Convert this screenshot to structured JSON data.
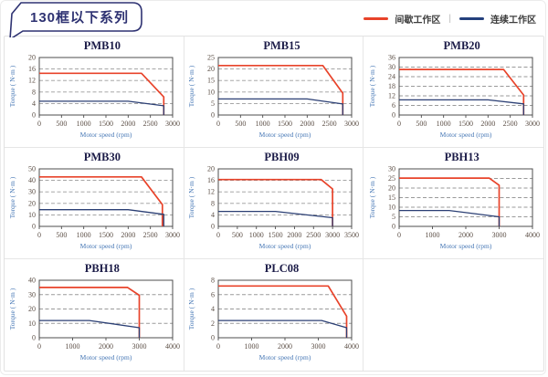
{
  "header": {
    "series_title": "130框以下系列",
    "legend_separator": "|",
    "legend": [
      {
        "name": "intermittent-zone",
        "label": "间歇工作区",
        "color": "#e8432a"
      },
      {
        "name": "continuous-zone",
        "label": "连续工作区",
        "color": "#24407c"
      }
    ]
  },
  "colors": {
    "tag_border": "#2e3272",
    "intermittent_line": "#e8432a",
    "continuous_line": "#2b3f74",
    "grid_border": "#e2e2e2",
    "plot_frame": "#4d4d4d",
    "tick_text": "#5c4f46",
    "axis_text": "#4677b5"
  },
  "chart_data": [
    {
      "type": "line",
      "title": "PMB10",
      "xlabel": "Motor speed (rpm)",
      "ylabel": "Torque ( N·m )",
      "xlim": [
        0,
        3000
      ],
      "ylim": [
        0,
        20
      ],
      "xticks": [
        0,
        500,
        1000,
        1500,
        2000,
        2500,
        3000
      ],
      "yticks": [
        0,
        4,
        8,
        12,
        16,
        20
      ],
      "series": [
        {
          "name": "间歇工作区",
          "color": "#e8432a",
          "points": [
            [
              0,
              14.5
            ],
            [
              2300,
              14.5
            ],
            [
              2800,
              6.3
            ],
            [
              2800,
              0
            ]
          ]
        },
        {
          "name": "连续工作区",
          "color": "#2b3f74",
          "points": [
            [
              0,
              4.8
            ],
            [
              2000,
              4.8
            ],
            [
              2800,
              3.2
            ],
            [
              2800,
              0
            ]
          ]
        }
      ]
    },
    {
      "type": "line",
      "title": "PMB15",
      "xlabel": "Motor speed (rpm)",
      "ylabel": "Torque ( N·m )",
      "xlim": [
        0,
        3000
      ],
      "ylim": [
        0,
        25
      ],
      "xticks": [
        0,
        500,
        1000,
        1500,
        2000,
        2500,
        3000
      ],
      "yticks": [
        0,
        5,
        10,
        15,
        20,
        25
      ],
      "series": [
        {
          "name": "间歇工作区",
          "color": "#e8432a",
          "points": [
            [
              0,
              21.5
            ],
            [
              2350,
              21.5
            ],
            [
              2800,
              9.5
            ],
            [
              2800,
              0
            ]
          ]
        },
        {
          "name": "连续工作区",
          "color": "#2b3f74",
          "points": [
            [
              0,
              7
            ],
            [
              2000,
              7
            ],
            [
              2800,
              4.8
            ],
            [
              2800,
              0
            ]
          ]
        }
      ]
    },
    {
      "type": "line",
      "title": "PMB20",
      "xlabel": "Motor speed (rpm)",
      "ylabel": "Torque ( N·m )",
      "xlim": [
        0,
        3000
      ],
      "ylim": [
        0,
        36
      ],
      "xticks": [
        0,
        500,
        1000,
        1500,
        2000,
        2500,
        3000
      ],
      "yticks": [
        0,
        6,
        12,
        18,
        24,
        30,
        36
      ],
      "series": [
        {
          "name": "间歇工作区",
          "color": "#e8432a",
          "points": [
            [
              0,
              28.5
            ],
            [
              2350,
              28.5
            ],
            [
              2800,
              12.5
            ],
            [
              2800,
              0
            ]
          ]
        },
        {
          "name": "连续工作区",
          "color": "#2b3f74",
          "points": [
            [
              0,
              9.5
            ],
            [
              2000,
              9.5
            ],
            [
              2800,
              7
            ],
            [
              2800,
              0
            ]
          ]
        }
      ]
    },
    {
      "type": "line",
      "title": "PMB30",
      "xlabel": "Motor speed (rpm)",
      "ylabel": "Torque ( N·m )",
      "xlim": [
        0,
        3000
      ],
      "ylim": [
        0,
        50
      ],
      "xticks": [
        0,
        500,
        1000,
        1500,
        2000,
        2500,
        3000
      ],
      "yticks": [
        0,
        10,
        20,
        30,
        40,
        50
      ],
      "series": [
        {
          "name": "间歇工作区",
          "color": "#e8432a",
          "points": [
            [
              0,
              43
            ],
            [
              2300,
              43
            ],
            [
              2770,
              19
            ],
            [
              2770,
              0
            ]
          ]
        },
        {
          "name": "连续工作区",
          "color": "#2b3f74",
          "points": [
            [
              0,
              14.5
            ],
            [
              2000,
              14.5
            ],
            [
              2800,
              10.5
            ],
            [
              2800,
              0
            ]
          ]
        }
      ]
    },
    {
      "type": "line",
      "title": "PBH09",
      "xlabel": "Motor speed (rpm)",
      "ylabel": "Torque ( N·m )",
      "xlim": [
        0,
        3500
      ],
      "ylim": [
        0,
        20
      ],
      "xticks": [
        0,
        500,
        1000,
        1500,
        2000,
        2500,
        3000,
        3500
      ],
      "yticks": [
        0,
        4,
        8,
        12,
        16,
        20
      ],
      "series": [
        {
          "name": "间歇工作区",
          "color": "#e8432a",
          "points": [
            [
              0,
              16.3
            ],
            [
              2700,
              16.3
            ],
            [
              3000,
              13
            ],
            [
              3000,
              0
            ]
          ]
        },
        {
          "name": "连续工作区",
          "color": "#2b3f74",
          "points": [
            [
              0,
              5.2
            ],
            [
              1500,
              5.2
            ],
            [
              3000,
              3
            ],
            [
              3000,
              0
            ]
          ]
        }
      ]
    },
    {
      "type": "line",
      "title": "PBH13",
      "xlabel": "Motor speed (rpm)",
      "ylabel": "Torque ( N·m )",
      "xlim": [
        0,
        4000
      ],
      "ylim": [
        0,
        30
      ],
      "xticks": [
        0,
        1000,
        2000,
        3000,
        4000
      ],
      "yticks": [
        0,
        5,
        10,
        15,
        20,
        25,
        30
      ],
      "series": [
        {
          "name": "间歇工作区",
          "color": "#e8432a",
          "points": [
            [
              0,
              25.2
            ],
            [
              2700,
              25.2
            ],
            [
              3000,
              21.5
            ],
            [
              3000,
              0
            ]
          ]
        },
        {
          "name": "连续工作区",
          "color": "#2b3f74",
          "points": [
            [
              0,
              8.3
            ],
            [
              1500,
              8.3
            ],
            [
              3000,
              5
            ],
            [
              3000,
              0
            ]
          ]
        }
      ]
    },
    {
      "type": "line",
      "title": "PBH18",
      "xlabel": "Motor speed (rpm)",
      "ylabel": "Torque ( N·m )",
      "xlim": [
        0,
        4000
      ],
      "ylim": [
        0,
        40
      ],
      "xticks": [
        0,
        1000,
        2000,
        3000,
        4000
      ],
      "yticks": [
        0,
        10,
        20,
        30,
        40
      ],
      "series": [
        {
          "name": "间歇工作区",
          "color": "#e8432a",
          "points": [
            [
              0,
              35
            ],
            [
              2650,
              35
            ],
            [
              3000,
              29.5
            ],
            [
              3000,
              0
            ]
          ]
        },
        {
          "name": "连续工作区",
          "color": "#2b3f74",
          "points": [
            [
              0,
              12
            ],
            [
              1500,
              12
            ],
            [
              3000,
              7
            ],
            [
              3000,
              0
            ]
          ]
        }
      ]
    },
    {
      "type": "line",
      "title": "PLC08",
      "xlabel": "Motor speed (rpm)",
      "ylabel": "Torque ( N·m )",
      "xlim": [
        0,
        4000
      ],
      "ylim": [
        0,
        8
      ],
      "xticks": [
        0,
        1000,
        2000,
        3000,
        4000
      ],
      "yticks": [
        0,
        2,
        4,
        6,
        8
      ],
      "series": [
        {
          "name": "间歇工作区",
          "color": "#e8432a",
          "points": [
            [
              0,
              7.2
            ],
            [
              3300,
              7.2
            ],
            [
              3850,
              3
            ],
            [
              3850,
              0
            ]
          ]
        },
        {
          "name": "连续工作区",
          "color": "#2b3f74",
          "points": [
            [
              0,
              2.4
            ],
            [
              3100,
              2.4
            ],
            [
              3850,
              1.4
            ],
            [
              3850,
              0
            ]
          ]
        }
      ]
    }
  ]
}
